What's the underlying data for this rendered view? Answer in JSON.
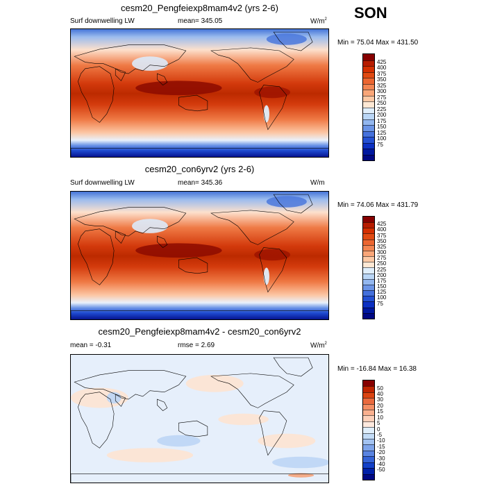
{
  "season": "SON",
  "panels": [
    {
      "id": "p1",
      "title": "cesm20_Pengfeiexp8mam4v2 (yrs 2-6)",
      "left_label": "Surf downwelling LW",
      "center_label": "mean= 345.05",
      "units": "W/m",
      "units_sup": "2",
      "minmax": "Min =  75.04 Max = 431.50",
      "map_kind": "absolute",
      "colorbar": {
        "colors": [
          "#870000",
          "#b71c00",
          "#d42f00",
          "#e04a12",
          "#ec6631",
          "#f38552",
          "#f9a678",
          "#fdc9a5",
          "#fee8d4",
          "#dfeefb",
          "#bad6f6",
          "#93b7ef",
          "#6b94e6",
          "#4571dc",
          "#2450d2",
          "#0c30c2",
          "#00189f",
          "#000883"
        ],
        "labels": [
          "425",
          "400",
          "375",
          "350",
          "325",
          "300",
          "275",
          "250",
          "225",
          "200",
          "175",
          "150",
          "125",
          "100",
          "75"
        ]
      }
    },
    {
      "id": "p2",
      "title": "cesm20_con6yrv2 (yrs 2-6)",
      "left_label": "Surf downwelling LW",
      "center_label": "mean= 345.36",
      "units": "W/m",
      "units_sup": "2",
      "minmax": "Min =  74.06 Max = 431.79",
      "map_kind": "absolute",
      "colorbar": {
        "colors": [
          "#870000",
          "#b71c00",
          "#d42f00",
          "#e04a12",
          "#ec6631",
          "#f38552",
          "#f9a678",
          "#fdc9a5",
          "#fee8d4",
          "#dfeefb",
          "#bad6f6",
          "#93b7ef",
          "#6b94e6",
          "#4571dc",
          "#2450d2",
          "#0c30c2",
          "#00189f",
          "#000883"
        ],
        "labels": [
          "425",
          "400",
          "375",
          "350",
          "325",
          "300",
          "275",
          "250",
          "225",
          "200",
          "175",
          "150",
          "125",
          "100",
          "75"
        ]
      }
    },
    {
      "id": "p3",
      "title": "cesm20_Pengfeiexp8mam4v2 - cesm20_con6yrv2",
      "left_label": "mean =  -0.31",
      "center_label": "rmse =   2.69",
      "units": "W/m",
      "units_sup": "2",
      "minmax": "Min = -16.84 Max =  16.38",
      "map_kind": "difference",
      "colorbar": {
        "colors": [
          "#870000",
          "#c02400",
          "#db4412",
          "#ea6a3e",
          "#f48e64",
          "#f9b08f",
          "#fcd0ba",
          "#fee9de",
          "#dfeefb",
          "#c3dcf7",
          "#a3c3f1",
          "#7ea4ea",
          "#5a84e1",
          "#3563d7",
          "#1340c8",
          "#0020a8",
          "#000883"
        ],
        "labels": [
          "50",
          "40",
          "30",
          "20",
          "15",
          "10",
          "5",
          "0",
          "-5",
          "-10",
          "-15",
          "-20",
          "-30",
          "-40",
          "-50"
        ]
      }
    }
  ]
}
